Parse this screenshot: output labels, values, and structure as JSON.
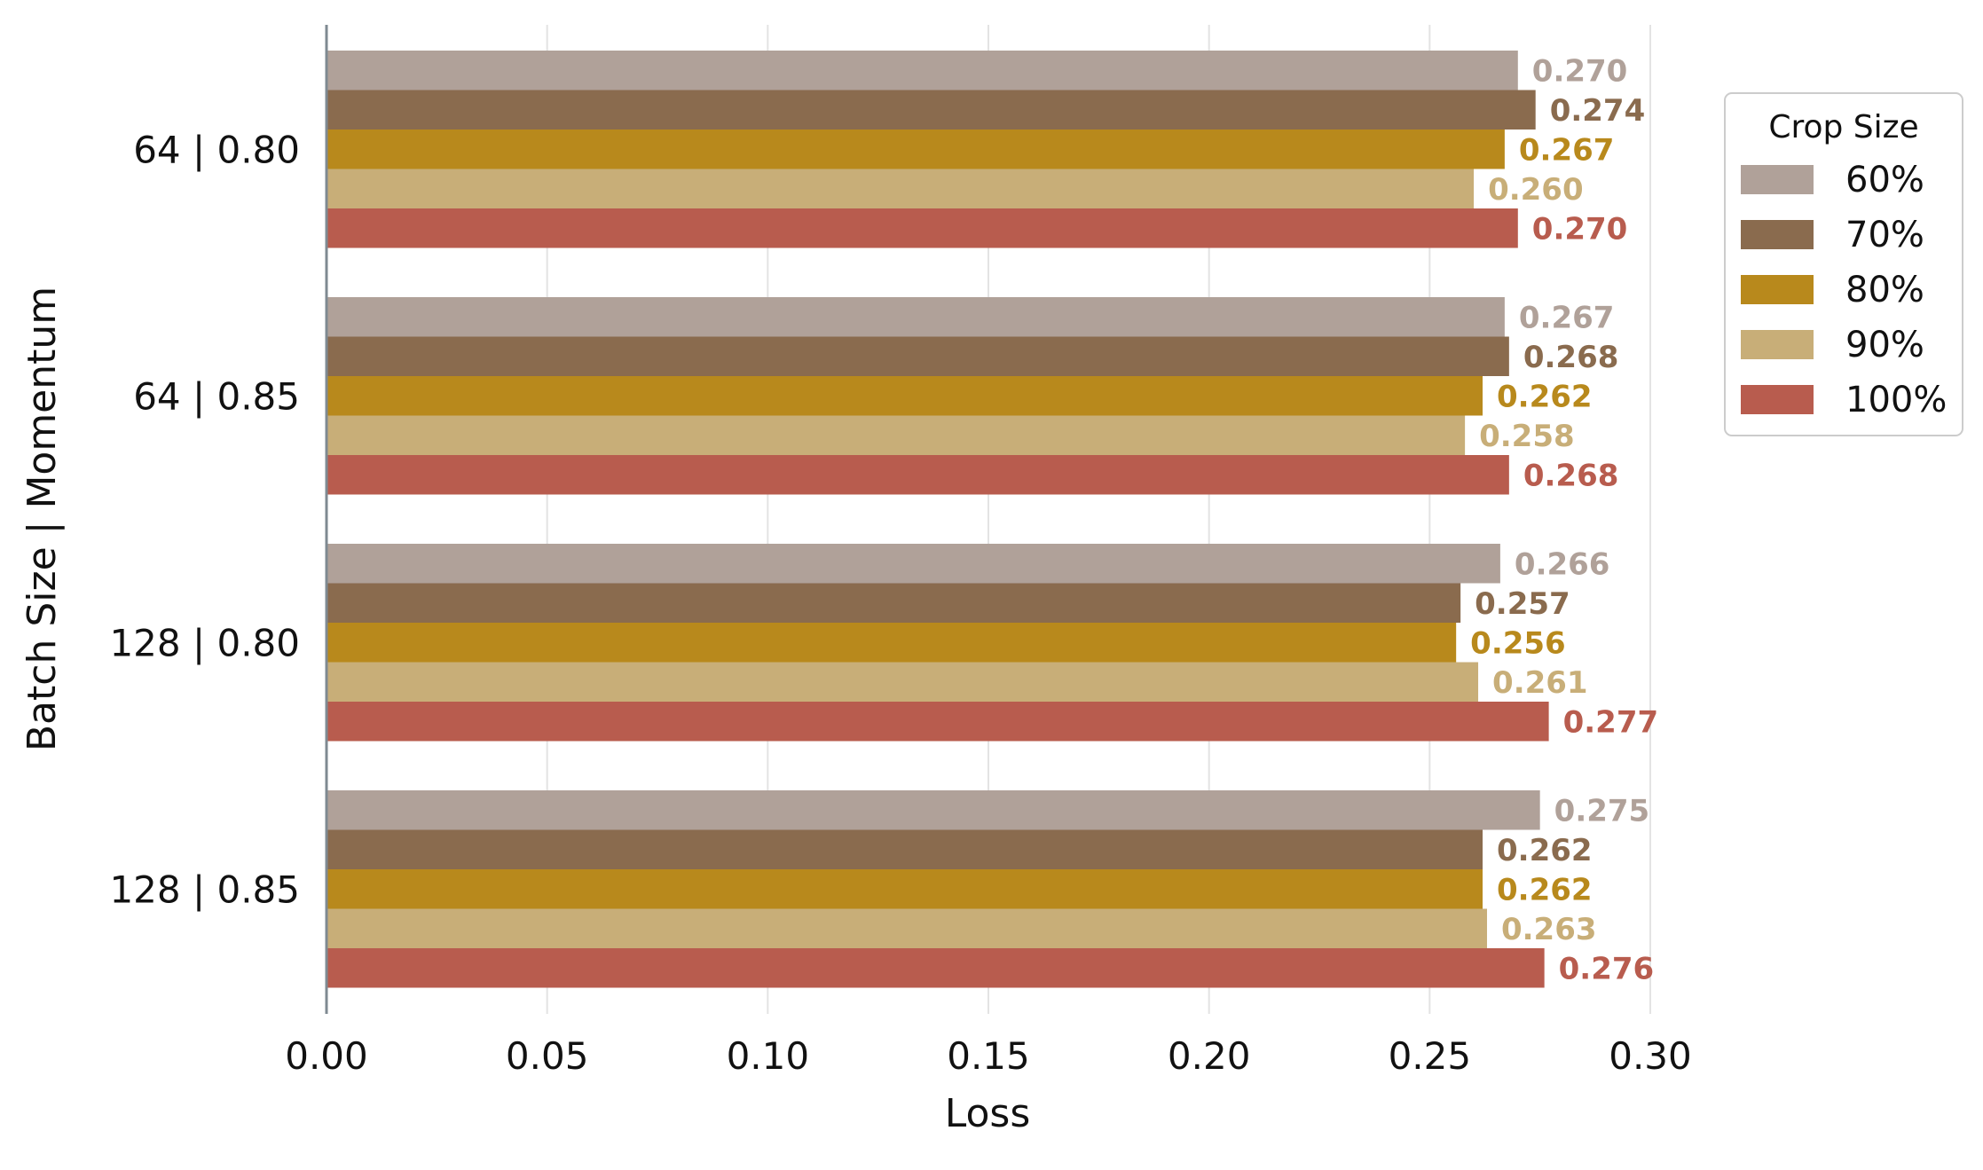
{
  "chart_data": {
    "type": "bar",
    "orientation": "horizontal",
    "xlabel": "Loss",
    "ylabel": "Batch Size | Momentum",
    "xlim": [
      0.0,
      0.3
    ],
    "xticks": [
      "0.00",
      "0.05",
      "0.10",
      "0.15",
      "0.20",
      "0.25",
      "0.30"
    ],
    "grid": "vertical",
    "categories": [
      "64 | 0.80",
      "64 | 0.85",
      "128 | 0.80",
      "128 | 0.85"
    ],
    "legend": {
      "title": "Crop Size",
      "placement": "right"
    },
    "series": [
      {
        "name": "60%",
        "color": "#b0a199",
        "values": [
          0.27,
          0.267,
          0.266,
          0.275
        ],
        "labels": [
          "0.270",
          "0.267",
          "0.266",
          "0.275"
        ]
      },
      {
        "name": "70%",
        "color": "#8a6b4e",
        "values": [
          0.274,
          0.268,
          0.257,
          0.262
        ],
        "labels": [
          "0.274",
          "0.268",
          "0.257",
          "0.262"
        ]
      },
      {
        "name": "80%",
        "color": "#b8891c",
        "values": [
          0.267,
          0.262,
          0.256,
          0.262
        ],
        "labels": [
          "0.267",
          "0.262",
          "0.256",
          "0.262"
        ]
      },
      {
        "name": "90%",
        "color": "#c8ae78",
        "values": [
          0.26,
          0.258,
          0.261,
          0.263
        ],
        "labels": [
          "0.260",
          "0.258",
          "0.261",
          "0.263"
        ]
      },
      {
        "name": "100%",
        "color": "#b85c4e",
        "values": [
          0.27,
          0.268,
          0.277,
          0.276
        ],
        "labels": [
          "0.270",
          "0.268",
          "0.277",
          "0.276"
        ]
      }
    ]
  }
}
